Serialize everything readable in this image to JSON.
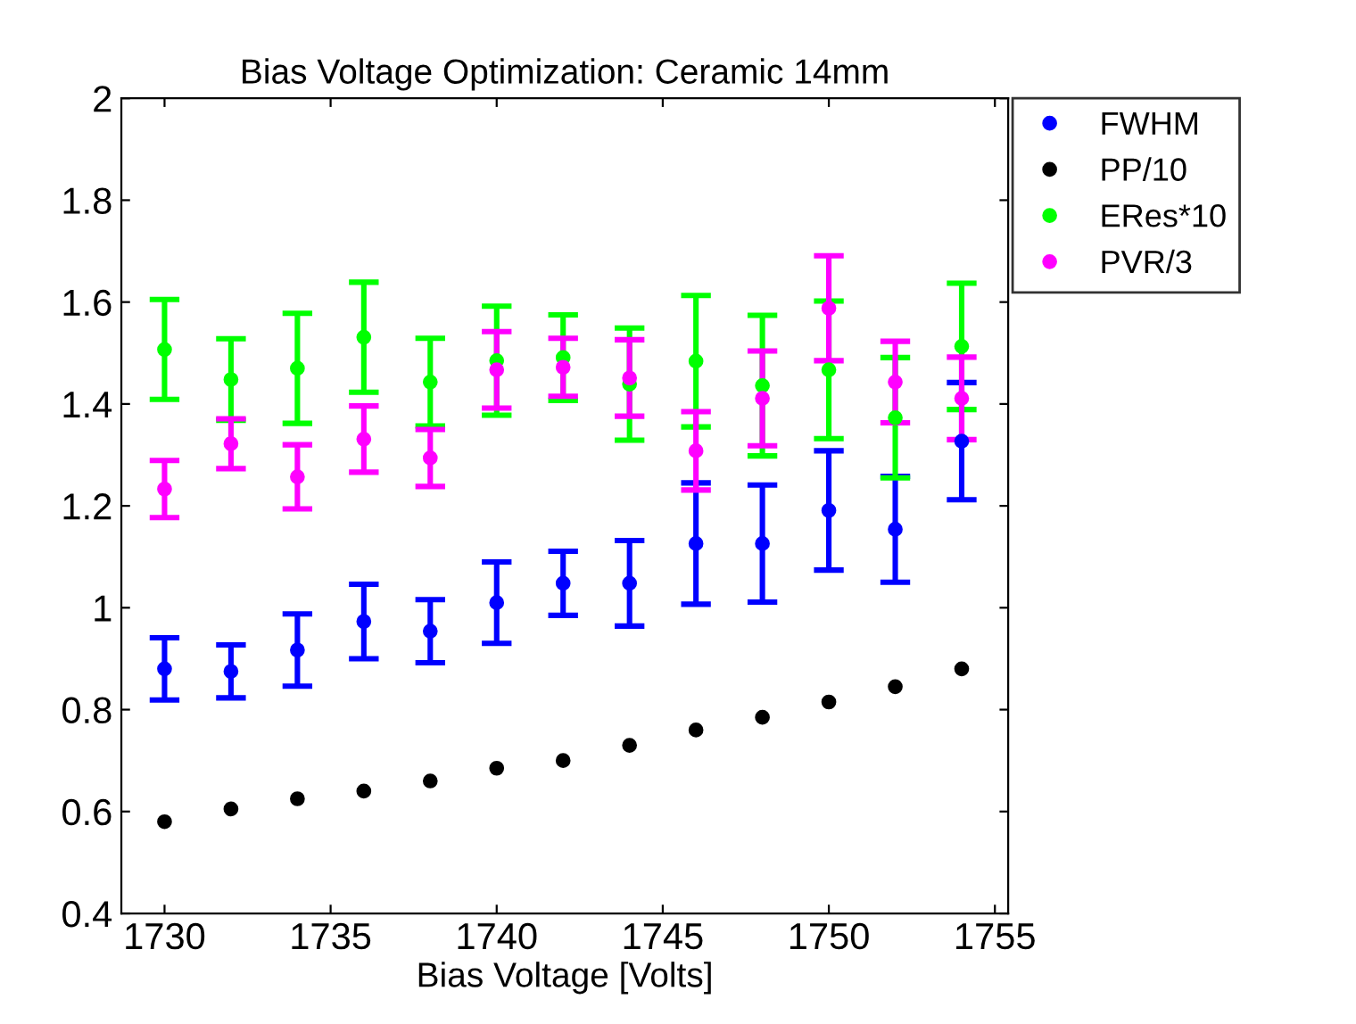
{
  "chart_data": {
    "type": "scatter",
    "title": "Bias Voltage Optimization: Ceramic 14mm",
    "xlabel": "Bias Voltage [Volts]",
    "x": [
      1730,
      1732,
      1734,
      1736,
      1738,
      1740,
      1742,
      1744,
      1746,
      1748,
      1750,
      1752,
      1754
    ],
    "series": [
      {
        "name": "FWHM",
        "color": "#0000ff",
        "values": [
          0.88,
          0.875,
          0.917,
          0.973,
          0.954,
          1.01,
          1.048,
          1.048,
          1.126,
          1.126,
          1.191,
          1.154,
          1.327
        ],
        "errors": [
          0.061,
          0.052,
          0.071,
          0.073,
          0.062,
          0.08,
          0.063,
          0.084,
          0.119,
          0.115,
          0.117,
          0.104,
          0.115
        ]
      },
      {
        "name": "PP/10",
        "color": "#000000",
        "values": [
          0.58,
          0.605,
          0.625,
          0.64,
          0.66,
          0.685,
          0.7,
          0.73,
          0.76,
          0.785,
          0.815,
          0.845,
          0.88
        ]
      },
      {
        "name": "ERes*10",
        "color": "#00ff00",
        "values": [
          1.507,
          1.448,
          1.47,
          1.531,
          1.443,
          1.485,
          1.491,
          1.439,
          1.484,
          1.436,
          1.467,
          1.373,
          1.513
        ],
        "errors": [
          0.098,
          0.08,
          0.108,
          0.108,
          0.086,
          0.107,
          0.084,
          0.11,
          0.129,
          0.138,
          0.135,
          0.118,
          0.124
        ]
      },
      {
        "name": "PVR/3",
        "color": "#ff00ff",
        "values": [
          1.233,
          1.322,
          1.257,
          1.331,
          1.294,
          1.467,
          1.472,
          1.451,
          1.308,
          1.411,
          1.588,
          1.443,
          1.411
        ],
        "errors": [
          0.056,
          0.049,
          0.063,
          0.065,
          0.056,
          0.075,
          0.057,
          0.075,
          0.077,
          0.093,
          0.103,
          0.08,
          0.081
        ]
      }
    ],
    "xlim": [
      1728.7,
      1755.4
    ],
    "xticks": [
      1730,
      1735,
      1740,
      1745,
      1750,
      1755
    ],
    "ylim": [
      0.4,
      2
    ],
    "yticks": [
      0.4,
      0.6,
      0.8,
      1,
      1.2,
      1.4,
      1.6,
      1.8,
      2
    ],
    "marker": "circle",
    "legend": "top right",
    "grid": false
  }
}
